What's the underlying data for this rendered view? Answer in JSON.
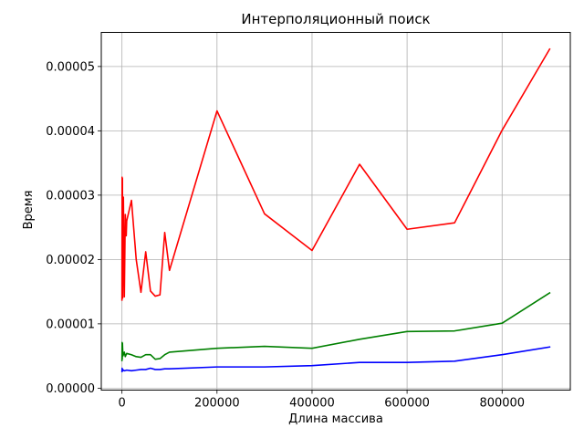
{
  "chart_data": {
    "type": "line",
    "title": "Интерполяционный поиск",
    "xlabel": "Длина массива",
    "ylabel": "Время",
    "xlim": [
      -43500,
      943500
    ],
    "ylim": [
      -3e-07,
      5.53e-05
    ],
    "grid": true,
    "x_ticks": [
      0,
      200000,
      400000,
      600000,
      800000
    ],
    "x_tick_labels": [
      "0",
      "200000",
      "400000",
      "600000",
      "800000"
    ],
    "y_ticks": [
      0,
      1e-05,
      2e-05,
      3e-05,
      4e-05,
      5e-05
    ],
    "y_tick_labels": [
      "0.00000",
      "0.00001",
      "0.00002",
      "0.00003",
      "0.00004",
      "0.00005"
    ],
    "series": [
      {
        "color": "#ff0000",
        "points": [
          [
            0,
            1.37e-05
          ],
          [
            300,
            3.28e-05
          ],
          [
            600,
            1.45e-05
          ],
          [
            1000,
            3.26e-05
          ],
          [
            1500,
            1.4e-05
          ],
          [
            3000,
            2.97e-05
          ],
          [
            5000,
            1.42e-05
          ],
          [
            7000,
            2.7e-05
          ],
          [
            9000,
            2.37e-05
          ],
          [
            10000,
            2.6e-05
          ],
          [
            20000,
            2.92e-05
          ],
          [
            30000,
            2e-05
          ],
          [
            40000,
            1.49e-05
          ],
          [
            50000,
            2.12e-05
          ],
          [
            60000,
            1.51e-05
          ],
          [
            70000,
            1.43e-05
          ],
          [
            80000,
            1.45e-05
          ],
          [
            90000,
            2.42e-05
          ],
          [
            100000,
            1.83e-05
          ],
          [
            200000,
            4.31e-05
          ],
          [
            300000,
            2.71e-05
          ],
          [
            400000,
            2.14e-05
          ],
          [
            500000,
            3.48e-05
          ],
          [
            600000,
            2.47e-05
          ],
          [
            700000,
            2.57e-05
          ],
          [
            800000,
            4.01e-05
          ],
          [
            900000,
            5.27e-05
          ]
        ]
      },
      {
        "color": "#008000",
        "points": [
          [
            0,
            4.3e-06
          ],
          [
            300,
            7.1e-06
          ],
          [
            600,
            4.5e-06
          ],
          [
            1000,
            7e-06
          ],
          [
            2000,
            5e-06
          ],
          [
            5000,
            5.6e-06
          ],
          [
            7000,
            4.9e-06
          ],
          [
            10000,
            5.4e-06
          ],
          [
            20000,
            5.2e-06
          ],
          [
            30000,
            4.9e-06
          ],
          [
            40000,
            4.8e-06
          ],
          [
            50000,
            5.2e-06
          ],
          [
            60000,
            5.2e-06
          ],
          [
            70000,
            4.5e-06
          ],
          [
            80000,
            4.6e-06
          ],
          [
            90000,
            5.2e-06
          ],
          [
            100000,
            5.6e-06
          ],
          [
            200000,
            6.2e-06
          ],
          [
            300000,
            6.5e-06
          ],
          [
            400000,
            6.2e-06
          ],
          [
            500000,
            7.6e-06
          ],
          [
            600000,
            8.8e-06
          ],
          [
            700000,
            8.9e-06
          ],
          [
            800000,
            1.01e-05
          ],
          [
            900000,
            1.48e-05
          ]
        ]
      },
      {
        "color": "#0000ff",
        "points": [
          [
            0,
            2.6e-06
          ],
          [
            300,
            3.1e-06
          ],
          [
            600,
            2.6e-06
          ],
          [
            1000,
            2.9e-06
          ],
          [
            5000,
            2.7e-06
          ],
          [
            10000,
            2.8e-06
          ],
          [
            20000,
            2.7e-06
          ],
          [
            30000,
            2.8e-06
          ],
          [
            40000,
            2.9e-06
          ],
          [
            50000,
            2.9e-06
          ],
          [
            60000,
            3.1e-06
          ],
          [
            70000,
            2.9e-06
          ],
          [
            80000,
            2.9e-06
          ],
          [
            90000,
            3e-06
          ],
          [
            100000,
            3e-06
          ],
          [
            200000,
            3.3e-06
          ],
          [
            300000,
            3.3e-06
          ],
          [
            400000,
            3.5e-06
          ],
          [
            500000,
            4e-06
          ],
          [
            600000,
            4e-06
          ],
          [
            700000,
            4.2e-06
          ],
          [
            800000,
            5.2e-06
          ],
          [
            900000,
            6.4e-06
          ]
        ]
      }
    ]
  }
}
